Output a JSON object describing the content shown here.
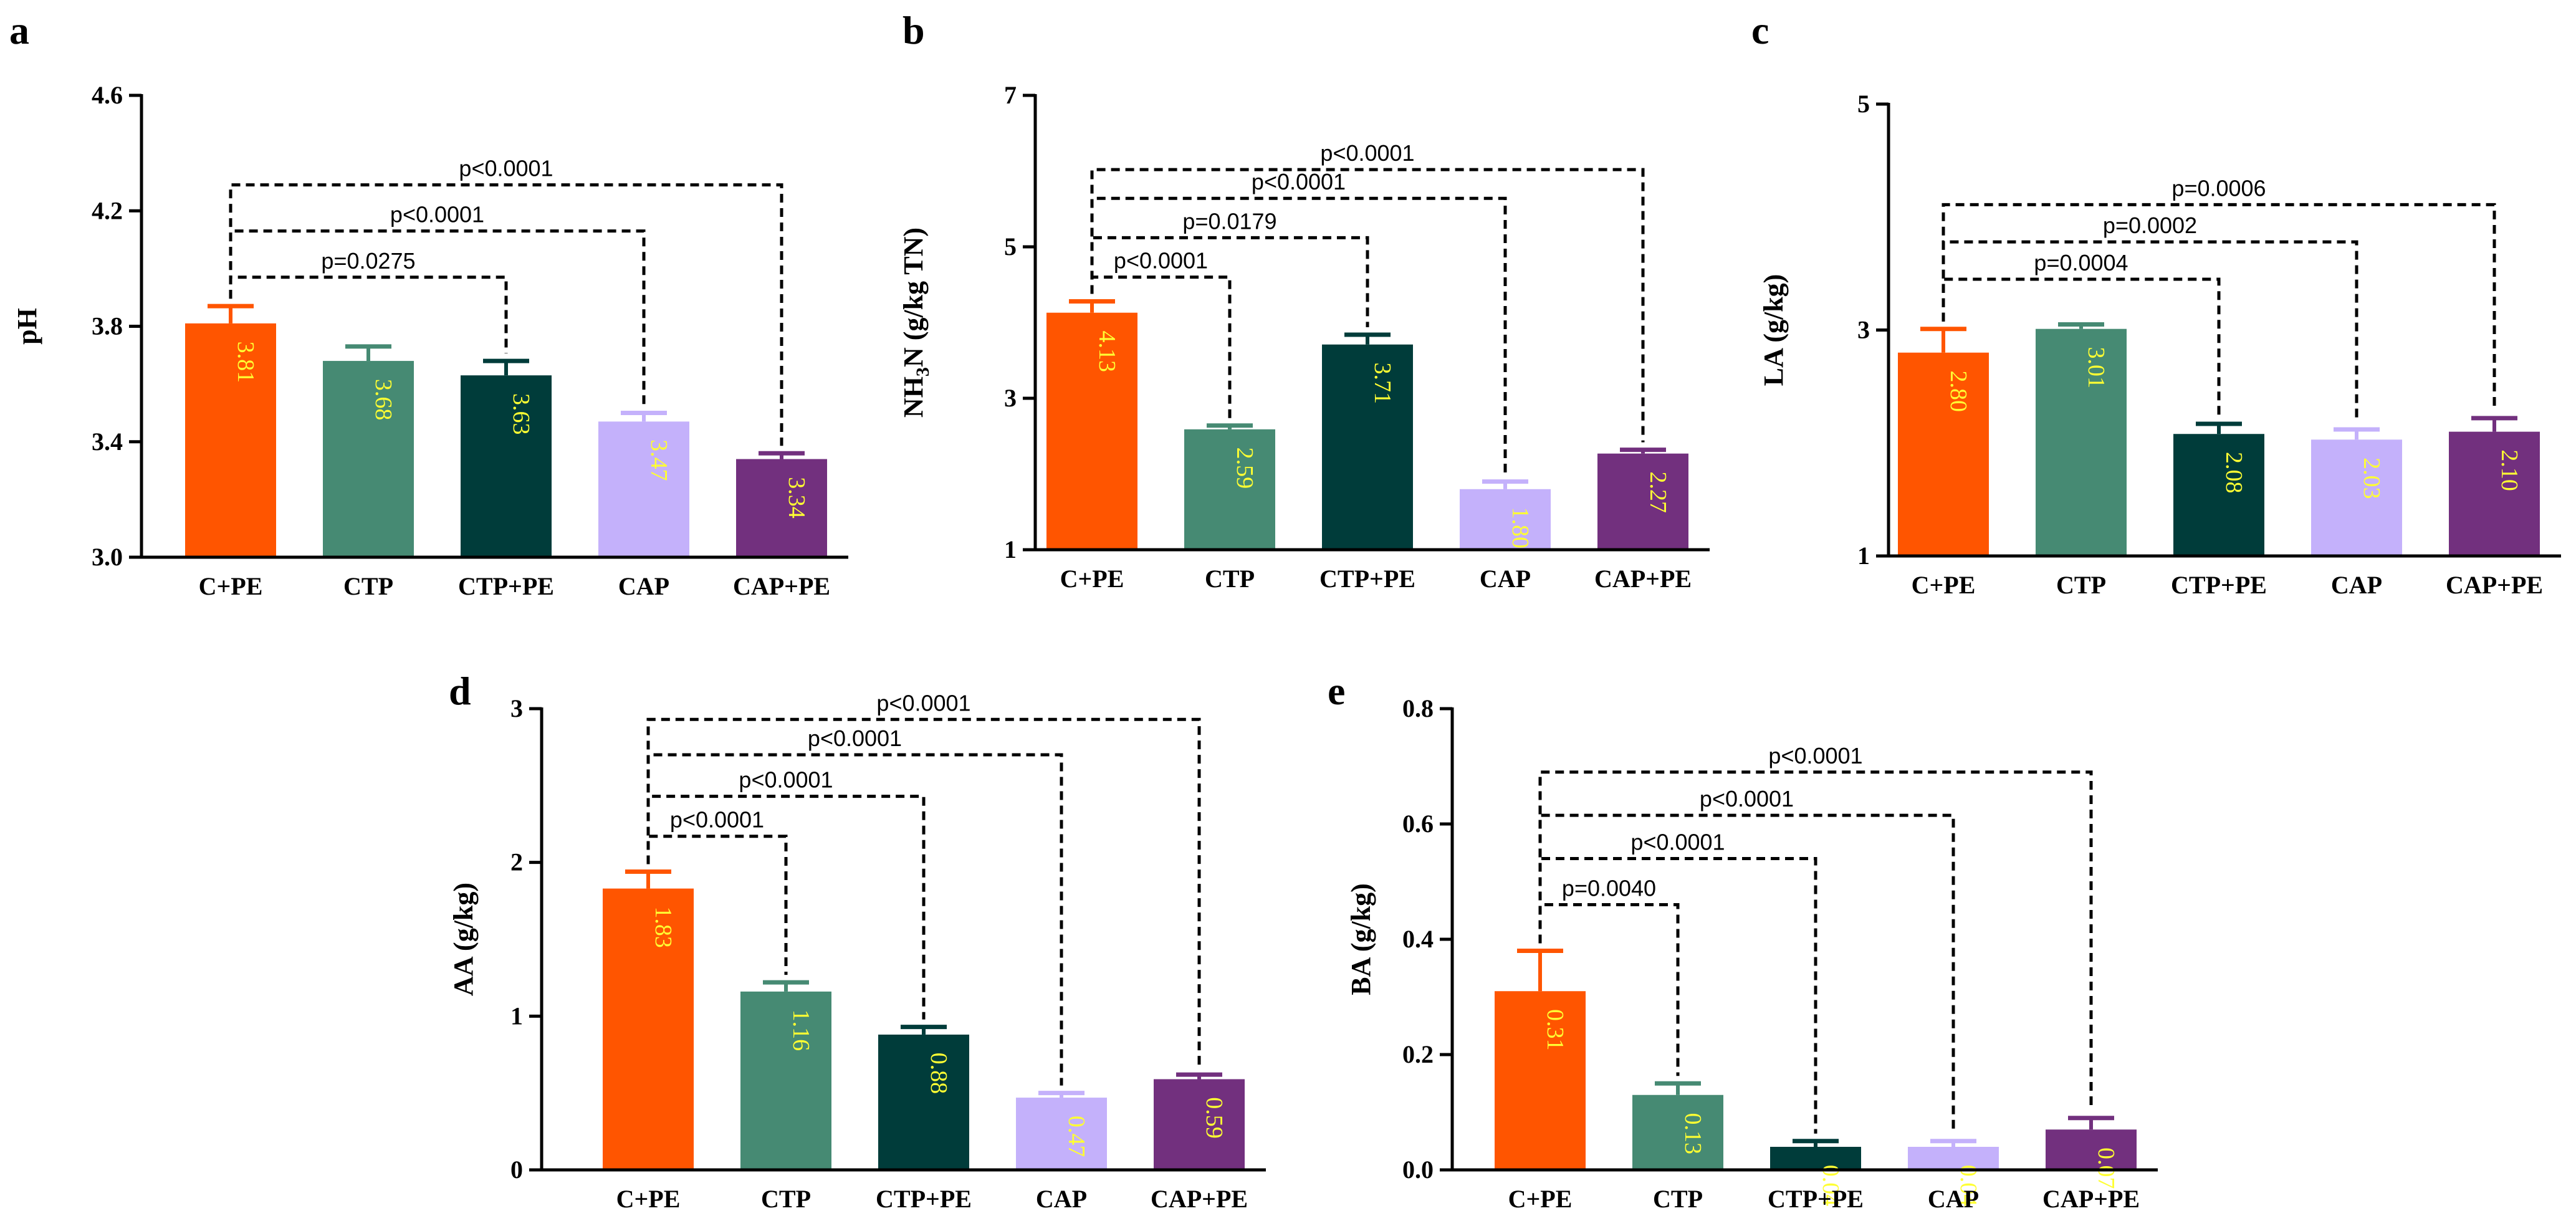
{
  "chart_data": [
    {
      "type": "bar",
      "panel": "a",
      "ylabel": "pH",
      "ylim": [
        3.0,
        4.6
      ],
      "yticks": [
        "3.0",
        "3.4",
        "3.8",
        "4.2",
        "4.6"
      ],
      "categories": [
        "C+PE",
        "CTP",
        "CTP+PE",
        "CAP",
        "CAP+PE"
      ],
      "values": [
        3.81,
        3.68,
        3.63,
        3.47,
        3.34
      ],
      "value_labels": [
        "3.81",
        "3.68",
        "3.63",
        "3.47",
        "3.34"
      ],
      "errors": [
        0.06,
        0.05,
        0.05,
        0.03,
        0.02
      ],
      "colors": [
        "#ff5500",
        "#468a73",
        "#003c3a",
        "#c4b1fb",
        "#72307e"
      ],
      "comparisons": [
        {
          "from": 0,
          "to": 2,
          "label": "p=0.0275",
          "level": 3.97
        },
        {
          "from": 0,
          "to": 3,
          "label": "p<0.0001",
          "level": 4.13
        },
        {
          "from": 0,
          "to": 4,
          "label": "p<0.0001",
          "level": 4.29
        }
      ]
    },
    {
      "type": "bar",
      "panel": "b",
      "ylabel": "NH3N (g/kg TN)",
      "ylabel_main": "NH",
      "ylabel_sub": "3",
      "ylabel_rest": "N (g/kg TN)",
      "ylim": [
        1,
        7
      ],
      "yticks": [
        "1",
        "3",
        "5",
        "7"
      ],
      "categories": [
        "C+PE",
        "CTP",
        "CTP+PE",
        "CAP",
        "CAP+PE"
      ],
      "values": [
        4.13,
        2.59,
        3.71,
        1.8,
        2.27
      ],
      "value_labels": [
        "4.13",
        "2.59",
        "3.71",
        "1.80",
        "2.27"
      ],
      "errors": [
        0.15,
        0.05,
        0.13,
        0.1,
        0.05
      ],
      "colors": [
        "#ff5500",
        "#468a73",
        "#003c3a",
        "#c4b1fb",
        "#72307e"
      ],
      "comparisons": [
        {
          "from": 0,
          "to": 1,
          "label": "p<0.0001",
          "level": 4.6
        },
        {
          "from": 0,
          "to": 2,
          "label": "p=0.0179",
          "level": 5.12
        },
        {
          "from": 0,
          "to": 3,
          "label": "p<0.0001",
          "level": 5.64
        },
        {
          "from": 0,
          "to": 4,
          "label": "p<0.0001",
          "level": 6.02
        }
      ]
    },
    {
      "type": "bar",
      "panel": "c",
      "ylabel": "LA (g/kg)",
      "ylim": [
        1,
        5
      ],
      "yticks": [
        "1",
        "3",
        "5"
      ],
      "categories": [
        "C+PE",
        "CTP",
        "CTP+PE",
        "CAP",
        "CAP+PE"
      ],
      "values": [
        2.8,
        3.01,
        2.08,
        2.03,
        2.1
      ],
      "value_labels": [
        "2.80",
        "3.01",
        "2.08",
        "2.03",
        "2.10"
      ],
      "errors": [
        0.21,
        0.04,
        0.09,
        0.09,
        0.12
      ],
      "colors": [
        "#ff5500",
        "#468a73",
        "#003c3a",
        "#c4b1fb",
        "#72307e"
      ],
      "comparisons": [
        {
          "from": 0,
          "to": 2,
          "label": "p=0.0004",
          "level": 3.45
        },
        {
          "from": 0,
          "to": 3,
          "label": "p=0.0002",
          "level": 3.78
        },
        {
          "from": 0,
          "to": 4,
          "label": "p=0.0006",
          "level": 4.11
        }
      ]
    },
    {
      "type": "bar",
      "panel": "d",
      "ylabel": "AA (g/kg)",
      "ylim": [
        0,
        3
      ],
      "yticks": [
        "0",
        "1",
        "2",
        "3"
      ],
      "categories": [
        "C+PE",
        "CTP",
        "CTP+PE",
        "CAP",
        "CAP+PE"
      ],
      "values": [
        1.83,
        1.16,
        0.88,
        0.47,
        0.59
      ],
      "value_labels": [
        "1.83",
        "1.16",
        "0.88",
        "0.47",
        "0.59"
      ],
      "errors": [
        0.11,
        0.06,
        0.05,
        0.03,
        0.03
      ],
      "colors": [
        "#ff5500",
        "#468a73",
        "#003c3a",
        "#c4b1fb",
        "#72307e"
      ],
      "comparisons": [
        {
          "from": 0,
          "to": 1,
          "label": "p<0.0001",
          "level": 2.17
        },
        {
          "from": 0,
          "to": 2,
          "label": "p<0.0001",
          "level": 2.43
        },
        {
          "from": 0,
          "to": 3,
          "label": "p<0.0001",
          "level": 2.7
        },
        {
          "from": 0,
          "to": 4,
          "label": "p<0.0001",
          "level": 2.93
        }
      ]
    },
    {
      "type": "bar",
      "panel": "e",
      "ylabel": "BA (g/kg)",
      "ylim": [
        0.0,
        0.8
      ],
      "yticks": [
        "0.0",
        "0.2",
        "0.4",
        "0.6",
        "0.8"
      ],
      "categories": [
        "C+PE",
        "CTP",
        "CTP+PE",
        "CAP",
        "CAP+PE"
      ],
      "values": [
        0.31,
        0.13,
        0.04,
        0.04,
        0.07
      ],
      "value_labels": [
        "0.31",
        "0.13",
        "0.04",
        "0.04",
        "0.07"
      ],
      "errors": [
        0.07,
        0.02,
        0.01,
        0.01,
        0.02
      ],
      "colors": [
        "#ff5500",
        "#468a73",
        "#003c3a",
        "#c4b1fb",
        "#72307e"
      ],
      "comparisons": [
        {
          "from": 0,
          "to": 1,
          "label": "p=0.0040",
          "level": 0.46
        },
        {
          "from": 0,
          "to": 2,
          "label": "p<0.0001",
          "level": 0.54
        },
        {
          "from": 0,
          "to": 3,
          "label": "p<0.0001",
          "level": 0.615
        },
        {
          "from": 0,
          "to": 4,
          "label": "p<0.0001",
          "level": 0.69
        }
      ]
    }
  ]
}
